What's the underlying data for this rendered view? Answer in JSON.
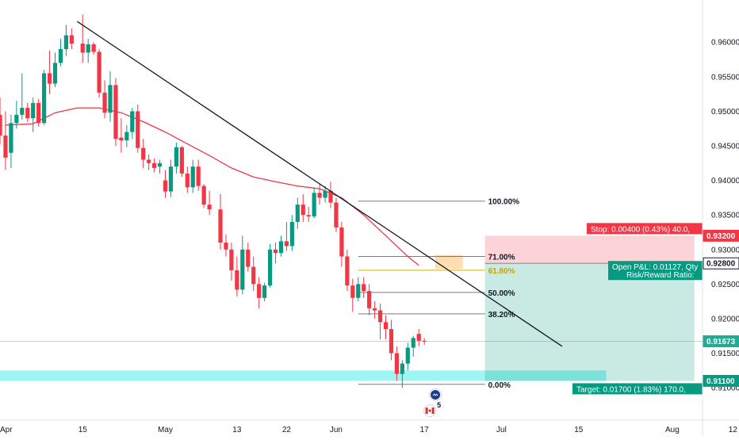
{
  "chart_data": {
    "type": "candlestick",
    "title": "",
    "y_range": [
      0.906,
      0.9645
    ],
    "x_ticks": [
      {
        "label": "Apr",
        "day": 0
      },
      {
        "label": "15",
        "day": 15
      },
      {
        "label": "May",
        "day": 30
      },
      {
        "label": "13",
        "day": 43
      },
      {
        "label": "22",
        "day": 52
      },
      {
        "label": "Jun",
        "day": 61
      },
      {
        "label": "17",
        "day": 77
      },
      {
        "label": "Jul",
        "day": 91
      },
      {
        "label": "15",
        "day": 105
      },
      {
        "label": "Aug",
        "day": 122
      },
      {
        "label": "12",
        "day": 133
      }
    ],
    "y_ticks": [
      "0.96000",
      "0.95500",
      "0.95000",
      "0.94500",
      "0.94000",
      "0.93500",
      "0.93000",
      "0.92500",
      "0.92000",
      "0.91500",
      "0.91000"
    ],
    "y_tick_values": [
      0.96,
      0.955,
      0.95,
      0.945,
      0.94,
      0.935,
      0.93,
      0.925,
      0.92,
      0.915,
      0.91
    ],
    "candles": [
      {
        "day": -1,
        "o": 0.9512,
        "h": 0.9525,
        "l": 0.945,
        "c": 0.9478
      },
      {
        "day": 0,
        "o": 0.9495,
        "h": 0.952,
        "l": 0.9452,
        "c": 0.9465
      },
      {
        "day": 1,
        "o": 0.9465,
        "h": 0.95,
        "l": 0.9415,
        "c": 0.9433
      },
      {
        "day": 2,
        "o": 0.944,
        "h": 0.9495,
        "l": 0.9418,
        "c": 0.9483
      },
      {
        "day": 3,
        "o": 0.9483,
        "h": 0.9515,
        "l": 0.9475,
        "c": 0.9495
      },
      {
        "day": 4,
        "o": 0.9495,
        "h": 0.9555,
        "l": 0.9488,
        "c": 0.9505
      },
      {
        "day": 5,
        "o": 0.9505,
        "h": 0.9512,
        "l": 0.9485,
        "c": 0.949
      },
      {
        "day": 6,
        "o": 0.949,
        "h": 0.952,
        "l": 0.947,
        "c": 0.9512
      },
      {
        "day": 7,
        "o": 0.9512,
        "h": 0.9518,
        "l": 0.9478,
        "c": 0.9483
      },
      {
        "day": 8,
        "o": 0.9483,
        "h": 0.956,
        "l": 0.948,
        "c": 0.9555
      },
      {
        "day": 9,
        "o": 0.9555,
        "h": 0.9588,
        "l": 0.9525,
        "c": 0.954
      },
      {
        "day": 10,
        "o": 0.954,
        "h": 0.9585,
        "l": 0.9535,
        "c": 0.957
      },
      {
        "day": 11,
        "o": 0.957,
        "h": 0.9605,
        "l": 0.9565,
        "c": 0.959
      },
      {
        "day": 12,
        "o": 0.959,
        "h": 0.9625,
        "l": 0.958,
        "c": 0.961
      },
      {
        "day": 13,
        "o": 0.961,
        "h": 0.962,
        "l": 0.959,
        "c": 0.9598
      },
      {
        "day": 15,
        "o": 0.9598,
        "h": 0.964,
        "l": 0.957,
        "c": 0.9585
      },
      {
        "day": 16,
        "o": 0.9585,
        "h": 0.9605,
        "l": 0.957,
        "c": 0.9597
      },
      {
        "day": 17,
        "o": 0.9597,
        "h": 0.96,
        "l": 0.9582,
        "c": 0.9586
      },
      {
        "day": 18,
        "o": 0.9586,
        "h": 0.959,
        "l": 0.952,
        "c": 0.9527
      },
      {
        "day": 19,
        "o": 0.9527,
        "h": 0.9545,
        "l": 0.949,
        "c": 0.9498
      },
      {
        "day": 20,
        "o": 0.9498,
        "h": 0.9558,
        "l": 0.9485,
        "c": 0.9538
      },
      {
        "day": 21,
        "o": 0.9538,
        "h": 0.9548,
        "l": 0.945,
        "c": 0.946
      },
      {
        "day": 22,
        "o": 0.9462,
        "h": 0.949,
        "l": 0.944,
        "c": 0.9458
      },
      {
        "day": 23,
        "o": 0.9458,
        "h": 0.948,
        "l": 0.9448,
        "c": 0.947
      },
      {
        "day": 24,
        "o": 0.947,
        "h": 0.9505,
        "l": 0.946,
        "c": 0.95
      },
      {
        "day": 25,
        "o": 0.95,
        "h": 0.951,
        "l": 0.944,
        "c": 0.9447
      },
      {
        "day": 26,
        "o": 0.9447,
        "h": 0.946,
        "l": 0.9418,
        "c": 0.943
      },
      {
        "day": 27,
        "o": 0.943,
        "h": 0.9438,
        "l": 0.9415,
        "c": 0.9425
      },
      {
        "day": 28,
        "o": 0.9425,
        "h": 0.9432,
        "l": 0.9412,
        "c": 0.9418
      },
      {
        "day": 29,
        "o": 0.942,
        "h": 0.943,
        "l": 0.941,
        "c": 0.9425
      },
      {
        "day": 30,
        "o": 0.94,
        "h": 0.9415,
        "l": 0.9375,
        "c": 0.9384
      },
      {
        "day": 31,
        "o": 0.9384,
        "h": 0.943,
        "l": 0.9376,
        "c": 0.942
      },
      {
        "day": 32,
        "o": 0.942,
        "h": 0.9455,
        "l": 0.941,
        "c": 0.9448
      },
      {
        "day": 33,
        "o": 0.9448,
        "h": 0.945,
        "l": 0.9405,
        "c": 0.941
      },
      {
        "day": 34,
        "o": 0.941,
        "h": 0.942,
        "l": 0.9382,
        "c": 0.939
      },
      {
        "day": 35,
        "o": 0.939,
        "h": 0.943,
        "l": 0.9382,
        "c": 0.942
      },
      {
        "day": 36,
        "o": 0.942,
        "h": 0.943,
        "l": 0.9385,
        "c": 0.9392
      },
      {
        "day": 37,
        "o": 0.9392,
        "h": 0.9395,
        "l": 0.936,
        "c": 0.9365
      },
      {
        "day": 38,
        "o": 0.9365,
        "h": 0.9385,
        "l": 0.935,
        "c": 0.9358
      },
      {
        "day": 40,
        "o": 0.9358,
        "h": 0.938,
        "l": 0.93,
        "c": 0.931
      },
      {
        "day": 41,
        "o": 0.931,
        "h": 0.9322,
        "l": 0.929,
        "c": 0.93
      },
      {
        "day": 42,
        "o": 0.93,
        "h": 0.931,
        "l": 0.9255,
        "c": 0.927
      },
      {
        "day": 43,
        "o": 0.927,
        "h": 0.929,
        "l": 0.9232,
        "c": 0.9242
      },
      {
        "day": 44,
        "o": 0.9242,
        "h": 0.932,
        "l": 0.9235,
        "c": 0.93
      },
      {
        "day": 45,
        "o": 0.93,
        "h": 0.931,
        "l": 0.9268,
        "c": 0.9275
      },
      {
        "day": 46,
        "o": 0.9275,
        "h": 0.929,
        "l": 0.924,
        "c": 0.925
      },
      {
        "day": 47,
        "o": 0.925,
        "h": 0.926,
        "l": 0.9215,
        "c": 0.923
      },
      {
        "day": 48,
        "o": 0.923,
        "h": 0.9252,
        "l": 0.9225,
        "c": 0.9248
      },
      {
        "day": 49,
        "o": 0.9248,
        "h": 0.9308,
        "l": 0.9245,
        "c": 0.93
      },
      {
        "day": 50,
        "o": 0.93,
        "h": 0.931,
        "l": 0.928,
        "c": 0.9295
      },
      {
        "day": 51,
        "o": 0.9295,
        "h": 0.932,
        "l": 0.929,
        "c": 0.9312
      },
      {
        "day": 52,
        "o": 0.9312,
        "h": 0.934,
        "l": 0.9298,
        "c": 0.9305
      },
      {
        "day": 53,
        "o": 0.9305,
        "h": 0.935,
        "l": 0.9298,
        "c": 0.934
      },
      {
        "day": 54,
        "o": 0.934,
        "h": 0.9375,
        "l": 0.933,
        "c": 0.9365
      },
      {
        "day": 55,
        "o": 0.9365,
        "h": 0.938,
        "l": 0.934,
        "c": 0.935
      },
      {
        "day": 56,
        "o": 0.935,
        "h": 0.9362,
        "l": 0.934,
        "c": 0.9348
      },
      {
        "day": 57,
        "o": 0.9348,
        "h": 0.939,
        "l": 0.9345,
        "c": 0.9382
      },
      {
        "day": 58,
        "o": 0.9382,
        "h": 0.9395,
        "l": 0.9365,
        "c": 0.9375
      },
      {
        "day": 59,
        "o": 0.9375,
        "h": 0.9392,
        "l": 0.9368,
        "c": 0.9385
      },
      {
        "day": 60,
        "o": 0.9385,
        "h": 0.9398,
        "l": 0.936,
        "c": 0.9368
      },
      {
        "day": 61,
        "o": 0.9368,
        "h": 0.9375,
        "l": 0.9325,
        "c": 0.9332
      },
      {
        "day": 62,
        "o": 0.9332,
        "h": 0.934,
        "l": 0.9275,
        "c": 0.929
      },
      {
        "day": 63,
        "o": 0.929,
        "h": 0.93,
        "l": 0.924,
        "c": 0.9248
      },
      {
        "day": 64,
        "o": 0.9248,
        "h": 0.9258,
        "l": 0.921,
        "c": 0.923
      },
      {
        "day": 65,
        "o": 0.923,
        "h": 0.926,
        "l": 0.9225,
        "c": 0.925
      },
      {
        "day": 66,
        "o": 0.925,
        "h": 0.926,
        "l": 0.923,
        "c": 0.924
      },
      {
        "day": 67,
        "o": 0.924,
        "h": 0.925,
        "l": 0.9205,
        "c": 0.9215
      },
      {
        "day": 68,
        "o": 0.9215,
        "h": 0.9225,
        "l": 0.92,
        "c": 0.9212
      },
      {
        "day": 69,
        "o": 0.9212,
        "h": 0.9222,
        "l": 0.917,
        "c": 0.9195
      },
      {
        "day": 70,
        "o": 0.9195,
        "h": 0.9205,
        "l": 0.917,
        "c": 0.9185
      },
      {
        "day": 71,
        "o": 0.9185,
        "h": 0.9198,
        "l": 0.914,
        "c": 0.915
      },
      {
        "day": 72,
        "o": 0.915,
        "h": 0.916,
        "l": 0.911,
        "c": 0.912
      },
      {
        "day": 73,
        "o": 0.912,
        "h": 0.914,
        "l": 0.91,
        "c": 0.9135
      },
      {
        "day": 74,
        "o": 0.9135,
        "h": 0.9165,
        "l": 0.9125,
        "c": 0.9158
      },
      {
        "day": 75,
        "o": 0.9158,
        "h": 0.9175,
        "l": 0.9145,
        "c": 0.9172
      },
      {
        "day": 76,
        "o": 0.9178,
        "h": 0.9185,
        "l": 0.916,
        "c": 0.9168
      },
      {
        "day": 77,
        "o": 0.9168,
        "h": 0.9172,
        "l": 0.9162,
        "c": 0.9167
      }
    ],
    "moving_average": [
      {
        "day": 1,
        "v": 0.948
      },
      {
        "day": 6,
        "v": 0.9482
      },
      {
        "day": 10,
        "v": 0.9498
      },
      {
        "day": 14,
        "v": 0.9505
      },
      {
        "day": 18,
        "v": 0.9505
      },
      {
        "day": 22,
        "v": 0.9498
      },
      {
        "day": 26,
        "v": 0.9485
      },
      {
        "day": 30,
        "v": 0.947
      },
      {
        "day": 34,
        "v": 0.9453
      },
      {
        "day": 38,
        "v": 0.9436
      },
      {
        "day": 42,
        "v": 0.9418
      },
      {
        "day": 46,
        "v": 0.9405
      },
      {
        "day": 50,
        "v": 0.9398
      },
      {
        "day": 54,
        "v": 0.9392
      },
      {
        "day": 58,
        "v": 0.9388
      },
      {
        "day": 62,
        "v": 0.9375
      },
      {
        "day": 66,
        "v": 0.935
      },
      {
        "day": 70,
        "v": 0.932
      },
      {
        "day": 74,
        "v": 0.929
      },
      {
        "day": 76,
        "v": 0.9277
      }
    ],
    "trendline": {
      "from": {
        "day": 14,
        "v": 0.963
      },
      "to": {
        "day": 102,
        "v": 0.916
      }
    },
    "fibonacci": {
      "start_day": 65,
      "end_day": 88,
      "label_day": 88,
      "levels": [
        {
          "label": "100.00%",
          "v": 0.937,
          "color": "#787b86"
        },
        {
          "label": "71.00%",
          "v": 0.929,
          "color": "#787b86"
        },
        {
          "label": "61.80%",
          "v": 0.927,
          "color": "#d4b106"
        },
        {
          "label": "50.00%",
          "v": 0.9238,
          "color": "#787b86"
        },
        {
          "label": "38.20%",
          "v": 0.9207,
          "color": "#787b86"
        },
        {
          "label": "0.00%",
          "v": 0.9105,
          "color": "#787b86"
        }
      ]
    },
    "zones": {
      "support": {
        "from_day": -1,
        "to_day": 110,
        "top": 0.9125,
        "bottom": 0.911,
        "color": "#8cf5f0"
      },
      "resistance": {
        "from_day": 79,
        "to_day": 84,
        "top": 0.9292,
        "bottom": 0.9272,
        "color": "#ffd8a8"
      }
    },
    "position": {
      "entry": 0.928,
      "stop": 0.932,
      "target": 0.911,
      "from_day": 88,
      "to_day": 126,
      "stop_label": "Stop: 0.00400 (0.43%) 40.0,",
      "target_label": "Target: 0.01700 (1.83%) 170.0,",
      "pnl_label": "Open P&L: 0.01127, Qty",
      "rr_label": "Risk/Reward Ratio:"
    },
    "current_price": {
      "value": 0.91673,
      "label": "0.91673"
    },
    "price_badges": [
      {
        "label": "0.93200",
        "v": 0.932,
        "bg": "#f23645",
        "fg": "#ffffff"
      },
      {
        "label": "0.92800",
        "v": 0.928,
        "bg": "#ffffff",
        "fg": "#131722",
        "border": "#131722"
      },
      {
        "label": "0.91673",
        "v": 0.91673,
        "bg": "#22ab94",
        "fg": "#ffffff"
      },
      {
        "label": "0.91100",
        "v": 0.911,
        "bg": "#089981",
        "fg": "#ffffff"
      }
    ],
    "events": [
      {
        "day": 79,
        "label": "",
        "kind": "au-flag-icon"
      },
      {
        "day": 78,
        "label": "5",
        "kind": "ca-flag-icon"
      }
    ],
    "colors": {
      "up": "#089981",
      "down": "#f23645",
      "ma": "#f23645",
      "trend": "#131722",
      "axis_text": "#131722"
    }
  }
}
